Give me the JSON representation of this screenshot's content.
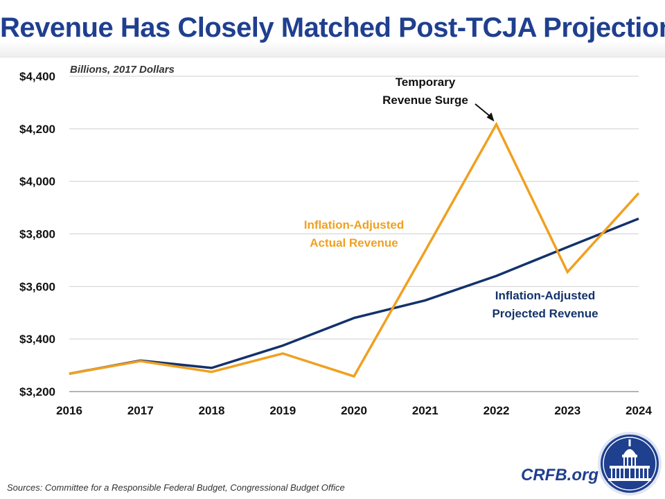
{
  "title": "Revenue Has Closely Matched Post-TCJA Projections",
  "source": "Sources: Committee for a Responsible Federal Budget, Congressional Budget Office",
  "brand": "CRFB.org",
  "seal_icon": "capitol-dome-seal-icon",
  "chart_data": {
    "type": "line",
    "title": "Revenue Has Closely Matched Post-TCJA Projections",
    "ylabel": "Billions, 2017 Dollars",
    "xlabel": "",
    "x": [
      2016,
      2017,
      2018,
      2019,
      2020,
      2021,
      2022,
      2023,
      2024
    ],
    "x_tick_labels": [
      "2016",
      "2017",
      "2018",
      "2019",
      "2020",
      "2021",
      "2022",
      "2023",
      "2024"
    ],
    "ylim": [
      3200,
      4400
    ],
    "y_ticks": [
      3200,
      3400,
      3600,
      3800,
      4000,
      4200,
      4400
    ],
    "y_tick_labels": [
      "$3,200",
      "$3,400",
      "$3,600",
      "$3,800",
      "$4,000",
      "$4,200",
      "$4,400"
    ],
    "grid": true,
    "series": [
      {
        "name": "Inflation-Adjusted Projected Revenue",
        "label_lines": [
          "Inflation-Adjusted",
          "Projected Revenue"
        ],
        "color": "#13326b",
        "values": [
          3268,
          3318,
          3290,
          3375,
          3480,
          3547,
          3640,
          3750,
          3858
        ]
      },
      {
        "name": "Inflation-Adjusted Actual Revenue",
        "label_lines": [
          "Inflation-Adjusted",
          "Actual Revenue"
        ],
        "color": "#f0a020",
        "values": [
          3268,
          3316,
          3275,
          3345,
          3258,
          3735,
          4217,
          3655,
          3955
        ]
      }
    ],
    "annotations": [
      {
        "text_lines": [
          "Temporary",
          "Revenue Surge"
        ],
        "x": 2022,
        "y": 4217,
        "arrow": true
      }
    ]
  }
}
